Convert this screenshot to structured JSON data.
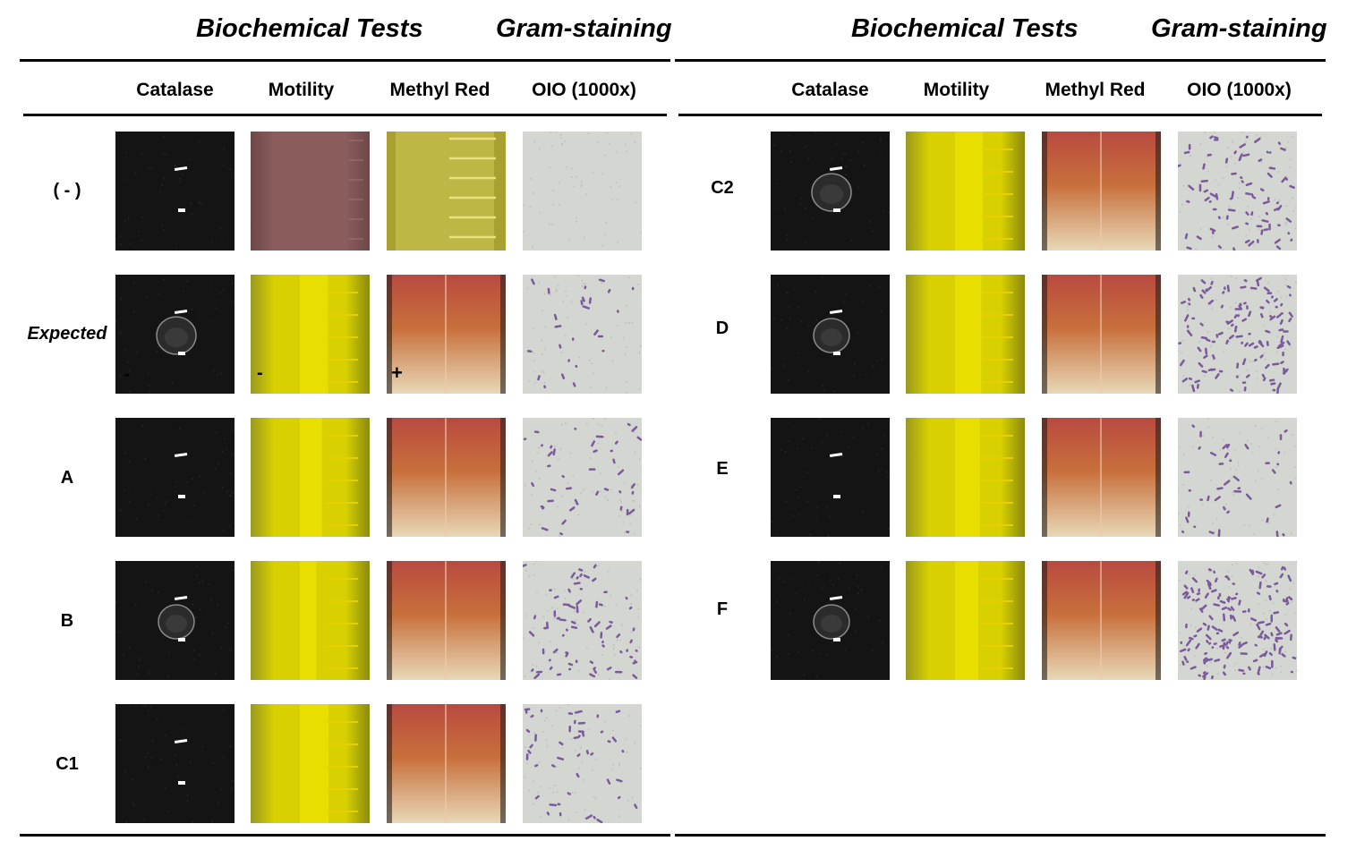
{
  "figure": {
    "left_table": {
      "group_headers": {
        "biochemical": "Biochemical Tests",
        "gram": "Gram-staining"
      },
      "columns": [
        "Catalase",
        "Motility",
        "Methyl Red",
        "OIO (1000x)"
      ],
      "rows": [
        {
          "label": "( - )",
          "italic": false
        },
        {
          "label": "Expected",
          "italic": true,
          "marks": {
            "catalase": "-",
            "motility": "-",
            "methyl_red": "+"
          }
        },
        {
          "label": "A",
          "italic": false
        },
        {
          "label": "B",
          "italic": false
        },
        {
          "label": "C1",
          "italic": false
        }
      ]
    },
    "right_table": {
      "group_headers": {
        "biochemical": "Biochemical Tests",
        "gram": "Gram-staining"
      },
      "columns": [
        "Catalase",
        "Motility",
        "Methyl Red",
        "OIO (1000x)"
      ],
      "rows": [
        {
          "label": "C2",
          "italic": false
        },
        {
          "label": "D",
          "italic": false
        },
        {
          "label": "E",
          "italic": false
        },
        {
          "label": "F",
          "italic": false
        }
      ]
    },
    "photo_descriptions": {
      "catalase": "catalase-test-photo",
      "motility": "motility-tube-photo",
      "methyl_red": "methyl-red-tube-photo",
      "oio": "gram-stain-micrograph"
    },
    "colors": {
      "catalase_bg": "#141414",
      "motility_yellow": "#d8d000",
      "methyl_red_red": "#b84a40",
      "micro_bg": "#d4d6d2",
      "micro_cells": "#7a5a9a"
    }
  }
}
